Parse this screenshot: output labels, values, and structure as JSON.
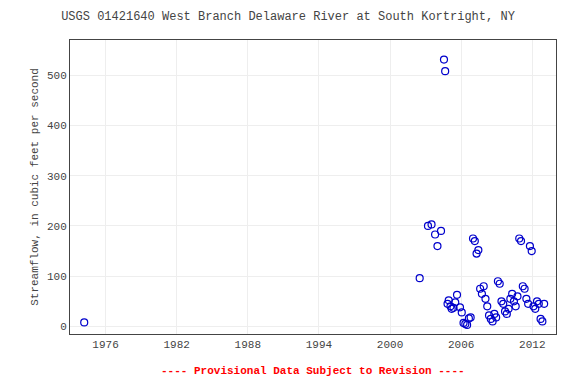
{
  "chart_data": {
    "type": "scatter",
    "title": "USGS 01421640 West Branch Delaware River at South Kortright, NY",
    "ylabel": "Streamflow, in cubic feet per second",
    "annotations": [
      {
        "text": "---- Provisional Data Subject to Revision ----",
        "color": "red"
      }
    ],
    "xlim": [
      1973,
      2014
    ],
    "ylim": [
      -15,
      570
    ],
    "xticks": [
      1976,
      1982,
      1988,
      1994,
      2000,
      2006,
      2012
    ],
    "yticks": [
      0,
      100,
      200,
      300,
      400,
      500
    ],
    "grid": true,
    "color": "#0000CC",
    "marker": "circle-open",
    "x": [
      1974.2,
      2002.5,
      2003.2,
      2003.5,
      2003.8,
      2004.0,
      2004.3,
      2004.55,
      2004.65,
      2004.85,
      2004.95,
      2005.1,
      2005.2,
      2005.35,
      2005.5,
      2005.65,
      2005.9,
      2006.05,
      2006.2,
      2006.35,
      2006.5,
      2006.65,
      2006.8,
      2007.0,
      2007.15,
      2007.3,
      2007.45,
      2007.6,
      2007.75,
      2007.9,
      2008.05,
      2008.2,
      2008.35,
      2008.5,
      2008.65,
      2008.8,
      2008.95,
      2009.1,
      2009.25,
      2009.4,
      2009.55,
      2009.7,
      2009.85,
      2010.0,
      2010.15,
      2010.3,
      2010.45,
      2010.6,
      2010.75,
      2010.9,
      2011.05,
      2011.2,
      2011.35,
      2011.5,
      2011.65,
      2011.8,
      2011.95,
      2012.1,
      2012.25,
      2012.4,
      2012.55,
      2012.7,
      2012.85,
      2013.0
    ],
    "values": [
      8,
      96,
      200,
      203,
      183,
      160,
      190,
      531,
      508,
      45,
      52,
      40,
      35,
      37,
      48,
      63,
      38,
      28,
      7,
      5,
      3,
      16,
      18,
      175,
      170,
      145,
      152,
      75,
      65,
      80,
      55,
      40,
      22,
      15,
      10,
      25,
      18,
      90,
      85,
      50,
      45,
      30,
      25,
      35,
      55,
      65,
      50,
      40,
      60,
      175,
      170,
      80,
      75,
      55,
      45,
      160,
      150,
      40,
      35,
      50,
      45,
      15,
      10,
      45
    ]
  }
}
